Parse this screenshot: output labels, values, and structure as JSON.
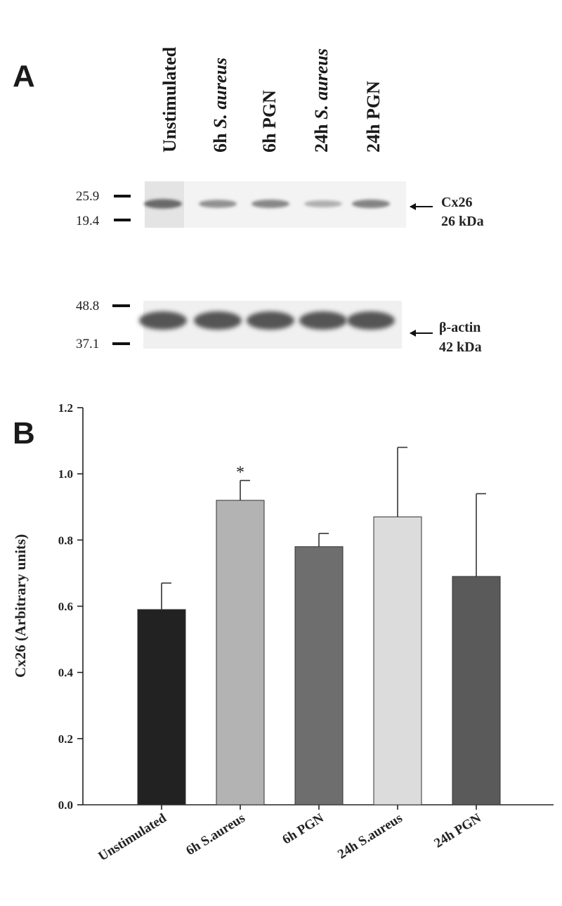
{
  "panel_a": {
    "letter": "A",
    "lanes": [
      {
        "pre": "Unstimulated",
        "it": ""
      },
      {
        "pre": "6h ",
        "it": "S. aureus"
      },
      {
        "pre": "6h PGN",
        "it": ""
      },
      {
        "pre": "24h ",
        "it": "S. aureus"
      },
      {
        "pre": "24h PGN",
        "it": ""
      }
    ],
    "blot_top": {
      "markers": [
        "25.9",
        "19.4"
      ],
      "label": "Cx26",
      "size": "26 kDa",
      "band_intensity": [
        0.75,
        0.55,
        0.6,
        0.4,
        0.62
      ]
    },
    "blot_bottom": {
      "markers": [
        "48.8",
        "37.1"
      ],
      "label": "β-actin",
      "size": "42 kDa",
      "band_intensity": [
        0.85,
        0.85,
        0.85,
        0.85,
        0.85
      ]
    }
  },
  "panel_b": {
    "letter": "B"
  },
  "chart_data": {
    "type": "bar",
    "title": "",
    "xlabel": "",
    "ylabel": "Cx26 (Arbitrary units)",
    "ylim": [
      0,
      1.2
    ],
    "yticks": [
      "0.0",
      "0.2",
      "0.4",
      "0.6",
      "0.8",
      "1.0",
      "1.2"
    ],
    "categories": [
      "Unstimulated",
      "6h  S.aureus",
      "6h  PGN",
      "24h  S.aureus",
      "24h  PGN"
    ],
    "values": [
      0.59,
      0.92,
      0.78,
      0.87,
      0.69
    ],
    "errors": [
      0.08,
      0.06,
      0.04,
      0.21,
      0.25
    ],
    "annotations": [
      "",
      "*",
      "",
      "",
      ""
    ],
    "colors": [
      "#222222",
      "#b3b3b3",
      "#6e6e6e",
      "#dcdcdc",
      "#5a5a5a"
    ]
  }
}
